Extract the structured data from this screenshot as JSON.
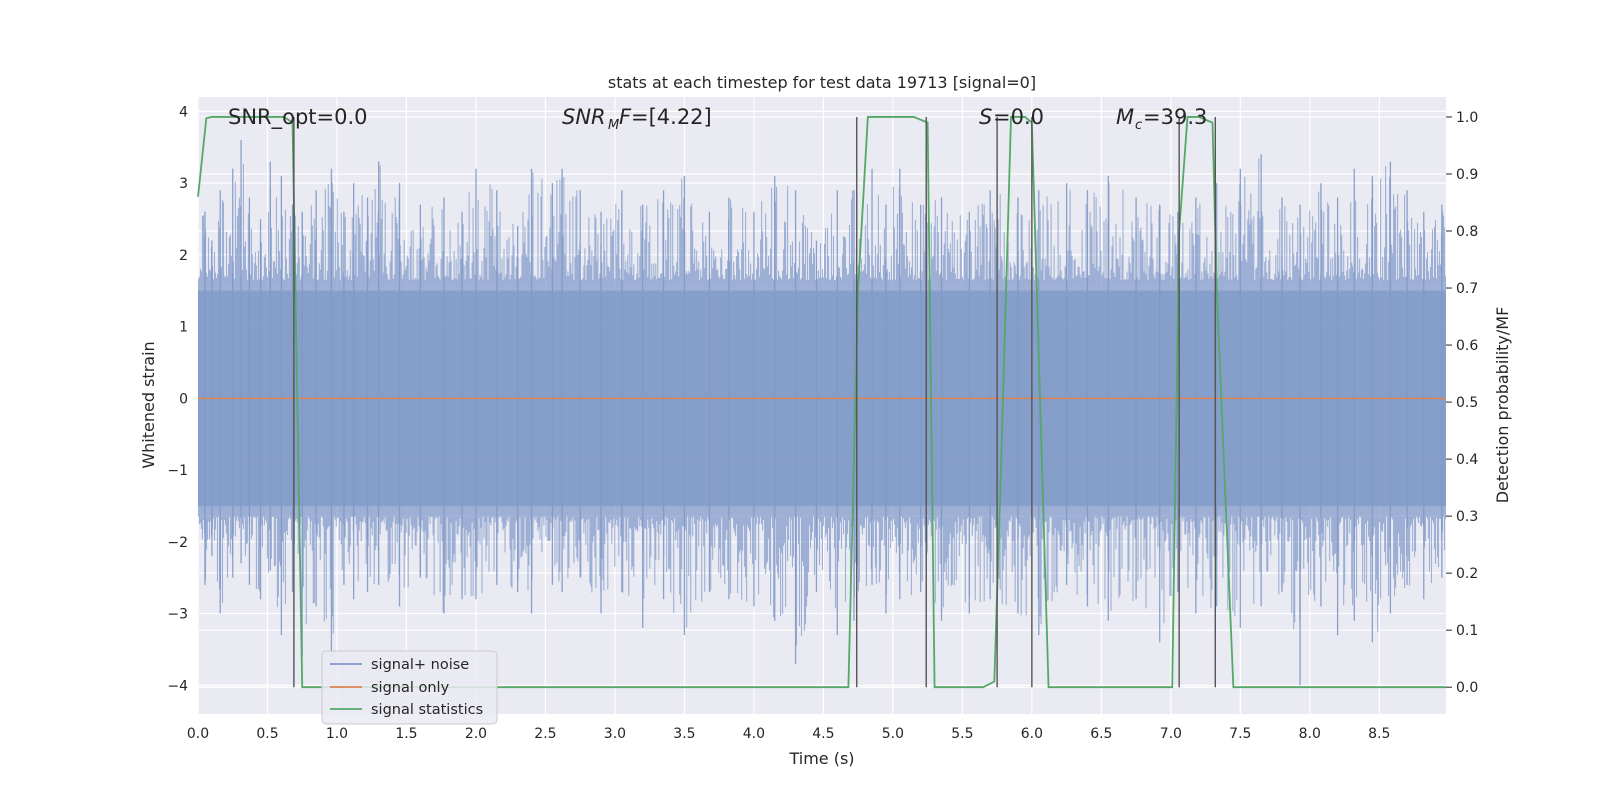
{
  "chart_data": {
    "type": "line",
    "title": "stats at each timestep for test data 19713 [signal=0]",
    "xlabel": "Time (s)",
    "ylabel_left": "Whitened strain",
    "ylabel_right": "Detection probability/MF",
    "xlim": [
      0.0,
      8.98
    ],
    "ylim_left": [
      -4.4,
      4.2
    ],
    "ylim_right": [
      -0.047,
      1.035
    ],
    "x_ticks": [
      0.0,
      0.5,
      1.0,
      1.5,
      2.0,
      2.5,
      3.0,
      3.5,
      4.0,
      4.5,
      5.0,
      5.5,
      6.0,
      6.5,
      7.0,
      7.5,
      8.0,
      8.5
    ],
    "x_tick_labels": [
      "0.0",
      "0.5",
      "1.0",
      "1.5",
      "2.0",
      "2.5",
      "3.0",
      "3.5",
      "4.0",
      "4.5",
      "5.0",
      "5.5",
      "6.0",
      "6.5",
      "7.0",
      "7.5",
      "8.0",
      "8.5"
    ],
    "y_ticks_left": [
      4,
      3,
      2,
      1,
      0,
      -1,
      -2,
      -3,
      -4
    ],
    "y_tick_labels_left": [
      "4",
      "3",
      "2",
      "1",
      "0",
      "−1",
      "−2",
      "−3",
      "−4"
    ],
    "y_ticks_right": [
      1.0,
      0.9,
      0.8,
      0.7,
      0.6,
      0.5,
      0.4,
      0.3,
      0.2,
      0.1,
      0.0
    ],
    "y_tick_labels_right": [
      "1.0",
      "0.9",
      "0.8",
      "0.7",
      "0.6",
      "0.5",
      "0.4",
      "0.3",
      "0.2",
      "0.1",
      "0.0"
    ],
    "grid": true,
    "legend": {
      "position": "lower-left",
      "entries": [
        "signal+ noise",
        "signal only",
        "signal statistics"
      ]
    },
    "annotations": {
      "snr_opt": "SNR_opt=0.0",
      "snr_mf": "=[4.22]",
      "s": "=0.0",
      "mc": "=39.3"
    },
    "series": [
      {
        "name": "signal+ noise",
        "color": "#7f98c7",
        "envelope": {
          "core_abs": 1.5,
          "peak_x": [
            0.05,
            0.1,
            0.16,
            0.25,
            0.31,
            0.37,
            0.45,
            0.52,
            0.6,
            0.68,
            0.75,
            0.85,
            0.96,
            1.05,
            1.12,
            1.22,
            1.3,
            1.45,
            1.6,
            1.77,
            1.9,
            2.0,
            2.15,
            2.3,
            2.4,
            2.55,
            2.62,
            2.75,
            2.9,
            3.05,
            3.2,
            3.35,
            3.5,
            3.68,
            3.82,
            4.0,
            4.15,
            4.3,
            4.45,
            4.6,
            4.72,
            4.85,
            4.95,
            5.05,
            5.2,
            5.35,
            5.55,
            5.7,
            5.9,
            6.05,
            6.25,
            6.4,
            6.55,
            6.75,
            6.92,
            7.05,
            7.18,
            7.33,
            7.5,
            7.65,
            7.8,
            7.93,
            8.08,
            8.2,
            8.32,
            8.45,
            8.58,
            8.7,
            8.82,
            8.95
          ],
          "peak_up": [
            2.6,
            2.2,
            2.9,
            3.2,
            3.6,
            2.8,
            2.5,
            3.3,
            3.1,
            2.7,
            2.6,
            2.9,
            3.2,
            2.6,
            3.0,
            2.8,
            3.3,
            3.0,
            2.7,
            2.8,
            2.6,
            3.2,
            2.9,
            2.4,
            3.2,
            3.0,
            3.2,
            2.9,
            2.6,
            2.9,
            2.7,
            2.9,
            3.1,
            2.6,
            2.8,
            2.6,
            3.1,
            2.9,
            2.2,
            2.9,
            2.9,
            3.2,
            2.7,
            3.2,
            2.7,
            2.8,
            2.6,
            2.9,
            2.8,
            2.9,
            3.0,
            2.9,
            3.1,
            2.8,
            2.7,
            2.6,
            2.8,
            3.0,
            3.2,
            3.4,
            2.8,
            2.7,
            3.0,
            2.8,
            3.2,
            3.1,
            3.3,
            2.9,
            2.6,
            2.7
          ],
          "peak_down": [
            -2.6,
            -2.2,
            -3.0,
            -2.5,
            -2.3,
            -2.6,
            -2.8,
            -2.4,
            -3.3,
            -2.7,
            -3.6,
            -2.9,
            -3.6,
            -2.6,
            -2.8,
            -2.7,
            -2.6,
            -2.9,
            -2.5,
            -3.0,
            -2.8,
            -2.8,
            -2.6,
            -2.7,
            -3.0,
            -2.6,
            -2.7,
            -2.5,
            -3.0,
            -2.7,
            -3.2,
            -2.8,
            -3.3,
            -2.7,
            -2.8,
            -2.9,
            -3.1,
            -3.7,
            -2.7,
            -3.3,
            -3.1,
            -2.6,
            -3.0,
            -2.8,
            -2.7,
            -3.1,
            -3.0,
            -2.8,
            -3.0,
            -3.3,
            -2.6,
            -2.9,
            -3.1,
            -2.8,
            -3.4,
            -2.7,
            -3.0,
            -2.9,
            -3.2,
            -2.9,
            -2.7,
            -4.0,
            -2.9,
            -3.3,
            -3.1,
            -3.4,
            -3.0,
            -2.6,
            -2.8,
            -2.5
          ]
        }
      },
      {
        "name": "signal only",
        "color": "#dd8452",
        "x": [
          0.0,
          8.98
        ],
        "y": [
          0.0,
          0.0
        ]
      },
      {
        "name": "signal statistics",
        "color": "#55a868",
        "axis": "right",
        "x": [
          0.0,
          0.06,
          0.1,
          0.2,
          0.35,
          0.5,
          0.62,
          0.68,
          0.75,
          0.82,
          0.9,
          1.2,
          2.0,
          3.0,
          4.0,
          4.68,
          4.75,
          4.82,
          5.0,
          5.15,
          5.25,
          5.3,
          5.35,
          5.45,
          5.55,
          5.65,
          5.73,
          5.78,
          5.85,
          5.95,
          6.0,
          6.12,
          6.3,
          6.6,
          7.01,
          7.06,
          7.12,
          7.2,
          7.3,
          7.33,
          7.45,
          7.6,
          8.0,
          8.5,
          8.98
        ],
        "y": [
          0.86,
          0.998,
          1.0,
          1.0,
          1.0,
          1.0,
          1.0,
          0.99,
          0.0,
          0.0,
          0.0,
          0.0,
          0.0,
          0.0,
          0.0,
          0.0,
          0.7,
          1.0,
          1.0,
          1.0,
          0.99,
          0.0,
          0.0,
          0.0,
          0.0,
          0.0,
          0.01,
          0.4,
          1.0,
          1.0,
          0.99,
          0.0,
          0.0,
          0.0,
          0.0,
          0.8,
          1.0,
          1.0,
          0.99,
          0.7,
          0.0,
          0.0,
          0.0,
          0.0,
          0.0
        ]
      }
    ],
    "vertical_lines": {
      "color": "#555555",
      "x": [
        0.69,
        4.74,
        5.24,
        5.75,
        6.0,
        7.06,
        7.32
      ],
      "y_top": [
        1.0,
        1.0,
        1.0,
        1.0,
        1.0,
        1.0,
        1.0
      ]
    }
  }
}
